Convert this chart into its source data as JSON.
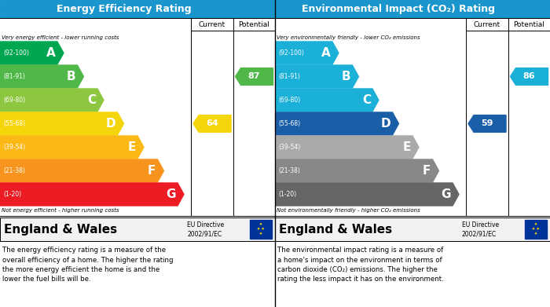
{
  "panel1_title": "Energy Efficiency Rating",
  "panel2_title": "Environmental Impact (CO₂) Rating",
  "header_color": "#1a96cc",
  "header_text_color": "#ffffff",
  "bands": [
    "A",
    "B",
    "C",
    "D",
    "E",
    "F",
    "G"
  ],
  "band_ranges": [
    "(92-100)",
    "(81-91)",
    "(69-80)",
    "(55-68)",
    "(39-54)",
    "(21-38)",
    "(1-20)"
  ],
  "epc_colors": [
    "#00a650",
    "#50b848",
    "#8dc63f",
    "#f5d60a",
    "#fcb814",
    "#f7941d",
    "#ed1c24"
  ],
  "co2_colors": [
    "#1ab0d8",
    "#1ab0d8",
    "#1ab0d8",
    "#1a5ea8",
    "#aaaaaa",
    "#888888",
    "#666666"
  ],
  "current_epc": 64,
  "potential_epc": 87,
  "current_epc_band_idx": 3,
  "potential_epc_band_idx": 1,
  "current_co2": 59,
  "potential_co2": 86,
  "current_co2_band_idx": 3,
  "potential_co2_band_idx": 1,
  "current_col_epc": "#f5d60a",
  "potential_col_epc": "#50b848",
  "current_col_co2": "#1a5ea8",
  "potential_col_co2": "#1ab0d8",
  "england_wales": "England & Wales",
  "eu_directive": "EU Directive\n2002/91/EC",
  "footer_text1": "The energy efficiency rating is a measure of the\noverall efficiency of a home. The higher the rating\nthe more energy efficient the home is and the\nlower the fuel bills will be.",
  "footer_text2": "The environmental impact rating is a measure of\na home's impact on the environment in terms of\ncarbon dioxide (CO₂) emissions. The higher the\nrating the less impact it has on the environment.",
  "top_label_epc": "Very energy efficient - lower running costs",
  "bottom_label_epc": "Not energy efficient - higher running costs",
  "top_label_co2": "Very environmentally friendly - lower CO₂ emissions",
  "bottom_label_co2": "Not environmentally friendly - higher CO₂ emissions"
}
